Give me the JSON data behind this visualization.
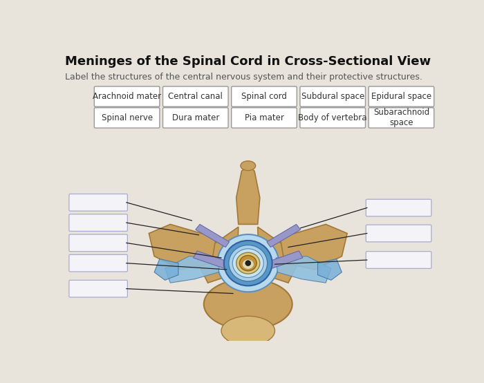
{
  "title": "Meninges of the Spinal Cord in Cross-Sectional View",
  "subtitle": "Label the structures of the central nervous system and their protective structures.",
  "bg_color": "#e8e4dc",
  "label_boxes_row1": [
    "Arachnoid mater",
    "Central canal",
    "Spinal cord",
    "Subdural space",
    "Epidural space"
  ],
  "label_boxes_row2": [
    "Spinal nerve",
    "Dura mater",
    "Pia mater",
    "Body of vertebra",
    "Subarachnoid\nspace"
  ],
  "box_bg": "#ffffff",
  "box_edge": "#999999",
  "text_color": "#333333",
  "title_color": "#111111",
  "bone_color": "#c8a060",
  "bone_edge": "#a07838",
  "bone_light": "#d8b878",
  "blue_outer": "#7ab8d8",
  "blue_mid": "#5090c0",
  "blue_inner": "#3070a8",
  "blue_fill": "#a8cce0",
  "blue_dark_fill": "#4888b8",
  "nerve_fill": "#9898c8",
  "nerve_edge": "#6868a8",
  "spinal_cord_fill": "#d8c090",
  "gray_matter": "#c8a040",
  "central_canal": "#303030",
  "empty_box_bg": "#f4f4f8",
  "empty_box_edge": "#aaaacc",
  "line_color": "#222222"
}
